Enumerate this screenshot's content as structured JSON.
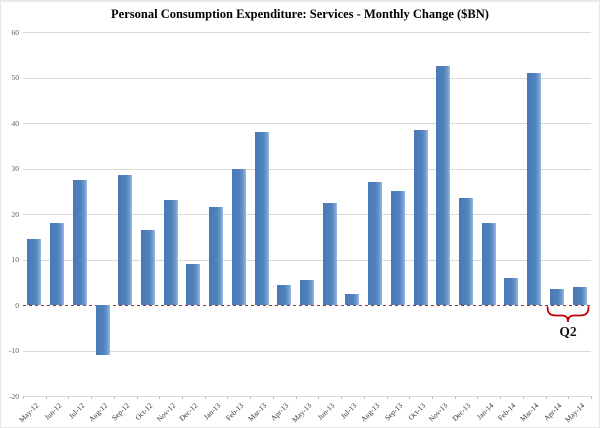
{
  "chart_data": {
    "type": "bar",
    "title": "Personal Consumption Expenditure: Services - Monthly Change ($BN)",
    "categories": [
      "May-12",
      "Jun-12",
      "Jul-12",
      "Aug-12",
      "Sep-12",
      "Oct-12",
      "Nov-12",
      "Dec-12",
      "Jan-13",
      "Feb-13",
      "Mar-13",
      "Apr-13",
      "May-13",
      "Jun-13",
      "Jul-13",
      "Aug-13",
      "Sep-13",
      "Oct-13",
      "Nov-13",
      "Dec-13",
      "Jan-14",
      "Feb-14",
      "Mar-14",
      "Apr-14",
      "May-14"
    ],
    "values": [
      14.5,
      18,
      27.5,
      -11,
      28.5,
      16.5,
      23,
      9,
      21.5,
      30,
      38,
      4.5,
      5.5,
      22.5,
      2.5,
      27,
      25,
      38.5,
      52.5,
      23.5,
      18,
      6,
      51,
      3.5,
      4
    ],
    "xlabel": "",
    "ylabel": "",
    "ylim": [
      -20,
      60
    ],
    "yticks": [
      60,
      50,
      40,
      30,
      20,
      10,
      0,
      -10,
      -20
    ],
    "grid": true,
    "legend": "none",
    "annotation": {
      "label": "Q2",
      "covers": [
        "Apr-14",
        "May-14"
      ],
      "shape": "curly-brace"
    },
    "colors": {
      "bar": "#4F81BD",
      "gridline": "#d9d9d9",
      "zero_line": "#953735",
      "brace": "#C00000",
      "tick_text": "#595959",
      "title_text": "#000000"
    }
  }
}
